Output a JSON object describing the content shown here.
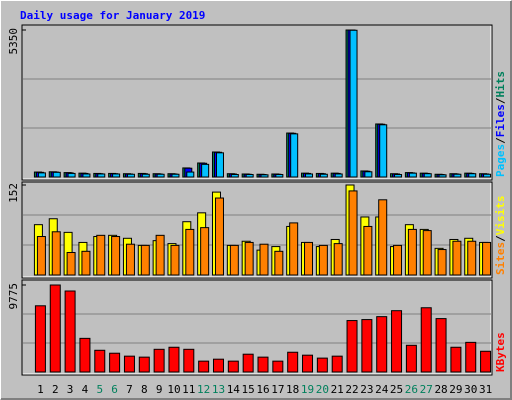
{
  "title": "Daily usage for January 2019",
  "x_axis": {
    "categories": [
      "1",
      "2",
      "3",
      "4",
      "5",
      "6",
      "7",
      "8",
      "9",
      "10",
      "11",
      "12",
      "13",
      "14",
      "15",
      "16",
      "17",
      "18",
      "19",
      "20",
      "21",
      "22",
      "23",
      "24",
      "25",
      "26",
      "27",
      "28",
      "29",
      "30",
      "31"
    ],
    "colors": [
      "#000000",
      "#000000",
      "#000000",
      "#000000",
      "#00805c",
      "#00805c",
      "#000000",
      "#000000",
      "#000000",
      "#000000",
      "#000000",
      "#00805c",
      "#00805c",
      "#000000",
      "#000000",
      "#000000",
      "#000000",
      "#000000",
      "#00805c",
      "#00805c",
      "#000000",
      "#000000",
      "#000000",
      "#000000",
      "#000000",
      "#00805c",
      "#00805c",
      "#000000",
      "#000000",
      "#000000",
      "#000000"
    ]
  },
  "chart_data": [
    {
      "type": "bar",
      "ylim": [
        0,
        5350
      ],
      "yticks": [
        5350
      ],
      "grid_divisions": 3,
      "legend_separator": "/",
      "series": [
        {
          "name": "Hits",
          "color": "#00805c",
          "values": [
            180,
            190,
            160,
            140,
            130,
            130,
            120,
            130,
            120,
            120,
            330,
            510,
            910,
            120,
            110,
            100,
            110,
            1600,
            140,
            130,
            140,
            5350,
            220,
            1930,
            120,
            160,
            140,
            100,
            120,
            140,
            120
          ]
        },
        {
          "name": "Files",
          "color": "#0000ff",
          "values": [
            170,
            180,
            150,
            130,
            120,
            120,
            110,
            120,
            110,
            110,
            320,
            500,
            900,
            110,
            100,
            90,
            100,
            1590,
            130,
            120,
            130,
            5350,
            210,
            1920,
            110,
            150,
            130,
            90,
            110,
            130,
            110
          ]
        },
        {
          "name": "Pages",
          "color": "#00c0ff",
          "values": [
            150,
            170,
            130,
            110,
            110,
            110,
            100,
            100,
            100,
            100,
            180,
            460,
            880,
            90,
            90,
            80,
            90,
            1570,
            110,
            100,
            110,
            5340,
            190,
            1900,
            90,
            140,
            120,
            80,
            100,
            120,
            100
          ]
        }
      ]
    },
    {
      "type": "bar",
      "ylim": [
        0,
        152
      ],
      "yticks": [
        152
      ],
      "grid_divisions": 3,
      "legend_separator": "/",
      "series": [
        {
          "name": "Visits",
          "color": "#ffff00",
          "values": [
            85,
            95,
            72,
            55,
            65,
            67,
            62,
            50,
            58,
            53,
            90,
            105,
            140,
            50,
            57,
            42,
            48,
            82,
            55,
            48,
            60,
            152,
            98,
            98,
            48,
            85,
            77,
            45,
            60,
            62,
            55
          ]
        },
        {
          "name": "Sites",
          "color": "#ff8000",
          "values": [
            65,
            73,
            38,
            40,
            67,
            65,
            52,
            50,
            67,
            50,
            77,
            80,
            130,
            50,
            55,
            52,
            40,
            88,
            55,
            50,
            53,
            142,
            82,
            127,
            50,
            77,
            75,
            43,
            57,
            57,
            55
          ]
        }
      ]
    },
    {
      "type": "bar",
      "ylim": [
        0,
        9775
      ],
      "yticks": [
        9775
      ],
      "grid_divisions": 3,
      "series": [
        {
          "name": "KBytes",
          "color": "#ff0000",
          "values": [
            7440,
            9775,
            9100,
            3780,
            2440,
            2110,
            1780,
            1670,
            2550,
            2780,
            2550,
            1220,
            1440,
            1220,
            2000,
            1670,
            1220,
            2220,
            1890,
            1560,
            1780,
            5780,
            5890,
            6220,
            6890,
            3000,
            7220,
            6000,
            2780,
            3330,
            2330
          ]
        }
      ]
    }
  ]
}
